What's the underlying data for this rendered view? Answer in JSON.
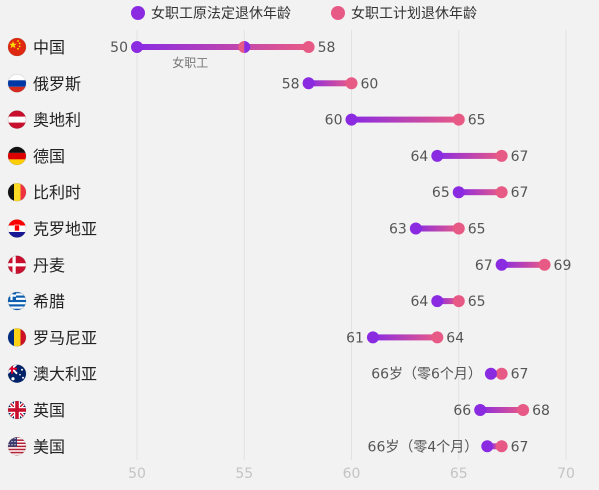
{
  "chart_data": {
    "type": "dumbbell",
    "legend": [
      {
        "name": "女职工原法定退休年龄",
        "color": "#8a2be2"
      },
      {
        "name": "女职工计划退休年龄",
        "color": "#e85a86"
      }
    ],
    "xlim": [
      50,
      70
    ],
    "ticks": [
      50,
      55,
      60,
      65,
      70
    ],
    "grid": true,
    "annotation": "女职工",
    "countries": [
      {
        "name": "中国",
        "flag": "china-flag-icon",
        "start": 50,
        "end": 58,
        "start_label": "50",
        "end_label": "58",
        "mid_marker": 55
      },
      {
        "name": "俄罗斯",
        "flag": "russia-flag-icon",
        "start": 58,
        "end": 60,
        "start_label": "58",
        "end_label": "60"
      },
      {
        "name": "奥地利",
        "flag": "austria-flag-icon",
        "start": 60,
        "end": 65,
        "start_label": "60",
        "end_label": "65"
      },
      {
        "name": "德国",
        "flag": "germany-flag-icon",
        "start": 64,
        "end": 67,
        "start_label": "64",
        "end_label": "67"
      },
      {
        "name": "比利时",
        "flag": "belgium-flag-icon",
        "start": 65,
        "end": 67,
        "start_label": "65",
        "end_label": "67"
      },
      {
        "name": "克罗地亚",
        "flag": "croatia-flag-icon",
        "start": 63,
        "end": 65,
        "start_label": "63",
        "end_label": "65"
      },
      {
        "name": "丹麦",
        "flag": "denmark-flag-icon",
        "start": 67,
        "end": 69,
        "start_label": "67",
        "end_label": "69"
      },
      {
        "name": "希腊",
        "flag": "greece-flag-icon",
        "start": 64,
        "end": 65,
        "start_label": "64",
        "end_label": "65"
      },
      {
        "name": "罗马尼亚",
        "flag": "romania-flag-icon",
        "start": 61,
        "end": 64,
        "start_label": "61",
        "end_label": "64"
      },
      {
        "name": "澳大利亚",
        "flag": "australia-flag-icon",
        "start": 66.5,
        "end": 67,
        "start_label": "66岁（零6个月）",
        "end_label": "67"
      },
      {
        "name": "英国",
        "flag": "uk-flag-icon",
        "start": 66,
        "end": 68,
        "start_label": "66",
        "end_label": "68"
      },
      {
        "name": "美国",
        "flag": "usa-flag-icon",
        "start": 66.33,
        "end": 67,
        "start_label": "66岁（零4个月）",
        "end_label": "67"
      }
    ]
  }
}
